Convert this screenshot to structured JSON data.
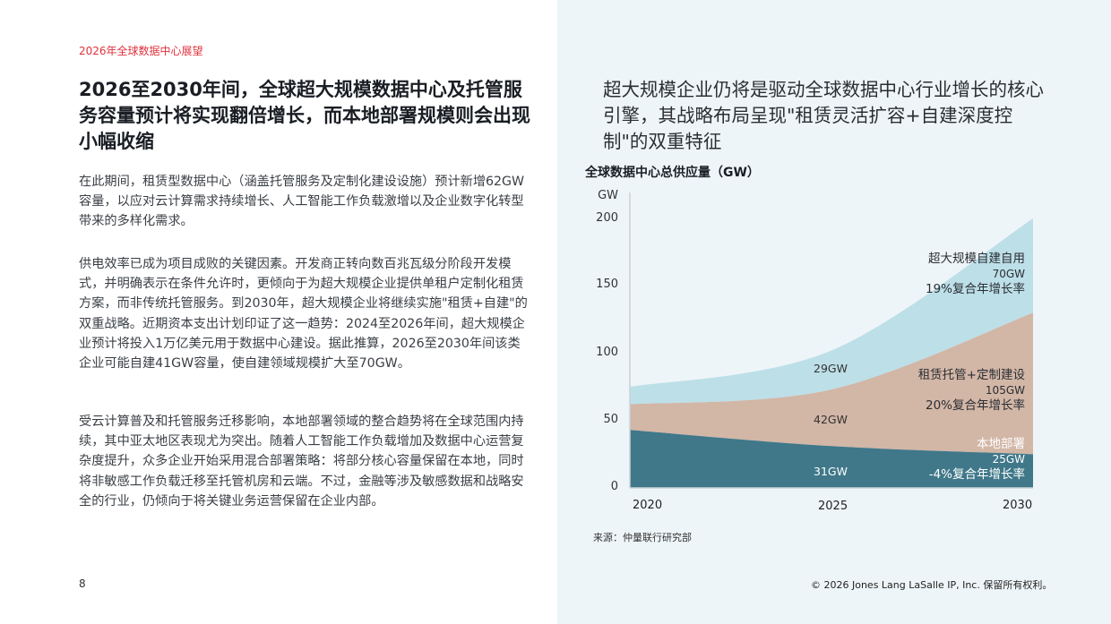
{
  "left": {
    "kicker": "2026年全球数据中心展望",
    "headline": "2026至2030年间，全球超大规模数据中心及托管服务容量预计将实现翻倍增长，而本地部署规模则会出现小幅收缩",
    "paragraphs": [
      "在此期间，租赁型数据中心（涵盖托管服务及定制化建设设施）预计新增62GW容量，以应对云计算需求持续增长、人工智能工作负载激增以及企业数字化转型带来的多样化需求。",
      "供电效率已成为项目成败的关键因素。开发商正转向数百兆瓦级分阶段开发模式，并明确表示在条件允许时，更倾向于为超大规模企业提供单租户定制化租赁方案，而非传统托管服务。到2030年，超大规模企业将继续实施\"租赁+自建\"的双重战略。近期资本支出计划印证了这一趋势：2024至2026年间，超大规模企业预计将投入1万亿美元用于数据中心建设。据此推算，2026至2030年间该类企业可能自建41GW容量，使自建领域规模扩大至70GW。",
      "受云计算普及和托管服务迁移影响，本地部署领域的整合趋势将在全球范围内持续，其中亚太地区表现尤为突出。随着人工智能工作负载增加及数据中心运营复杂度提升，众多企业开始采用混合部署策略：将部分核心容量保留在本地，同时将非敏感工作负载迁移至托管机房和云端。不过，金融等涉及敏感数据和战略安全的行业，仍倾向于将关键业务运营保留在企业内部。"
    ],
    "page_number": "8"
  },
  "right": {
    "quote": "超大规模企业仍将是驱动全球数据中心行业增长的核心引擎，其战略布局呈现\"租赁灵活扩容+自建深度控制\"的双重特征",
    "source": "来源：仲量联行研究部",
    "copyright": "© 2026 Jones Lang LaSalle IP, Inc. 保留所有权利。"
  },
  "colors": {
    "kicker_red": "#e2323c",
    "panel_bg": "#eef5f8",
    "hyperscale_light_blue": "#bddfe8",
    "leased_tan": "#d2b6a6",
    "onprem_teal": "#40788a"
  },
  "chart_data": {
    "type": "area",
    "stacked": true,
    "title": "全球数据中心总供应量（GW）",
    "xlabel": "",
    "ylabel": "GW",
    "ylim": [
      0,
      200
    ],
    "yticks": [
      "0",
      "50",
      "100",
      "150",
      "200"
    ],
    "x": [
      "2020",
      "2025",
      "2030"
    ],
    "series": [
      {
        "name": "本地部署",
        "values": [
          43,
          31,
          25
        ],
        "label_2025": "31GW",
        "label_2030": "25GW",
        "cagr": "-4%复合年增长率"
      },
      {
        "name": "租赁托管+定制建设",
        "values": [
          19,
          42,
          105
        ],
        "label_2025": "42GW",
        "label_2030": "105GW",
        "cagr": "20%复合年增长率"
      },
      {
        "name": "超大规模自建自用",
        "values": [
          13,
          29,
          70
        ],
        "label_2025": "29GW",
        "label_2030": "70GW",
        "cagr": "19%复合年增长率"
      }
    ],
    "grid": false,
    "legend": "inline annotations at right edge"
  }
}
